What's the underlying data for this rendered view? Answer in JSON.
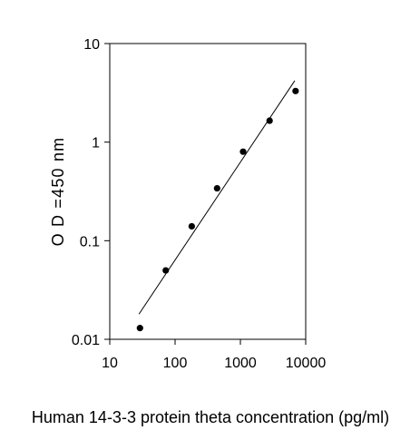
{
  "chart_data": {
    "type": "scatter",
    "title": "",
    "xlabel": "Human 14-3-3 protein theta  concentration (pg/ml)",
    "ylabel": "O D =450 nm",
    "x_scale": "log",
    "y_scale": "log",
    "xlim": [
      10,
      10000
    ],
    "ylim": [
      0.01,
      10
    ],
    "x_ticks": [
      10,
      100,
      1000,
      10000
    ],
    "x_tick_labels": [
      "10",
      "100",
      "1000",
      "10000"
    ],
    "y_ticks": [
      0.01,
      0.1,
      1,
      10
    ],
    "y_tick_labels": [
      "0.01",
      "0.1",
      "1",
      "10"
    ],
    "grid": false,
    "legend": "none",
    "series": [
      {
        "points": [
          {
            "x": 29,
            "y": 0.013
          },
          {
            "x": 72,
            "y": 0.05
          },
          {
            "x": 180,
            "y": 0.14
          },
          {
            "x": 440,
            "y": 0.34
          },
          {
            "x": 1100,
            "y": 0.8
          },
          {
            "x": 2800,
            "y": 1.65
          },
          {
            "x": 7000,
            "y": 3.3
          }
        ]
      }
    ],
    "fit_line": {
      "x": [
        28,
        6800
      ],
      "y": [
        0.018,
        4.2
      ]
    },
    "colors": {
      "marker": "#000000",
      "line": "#000000",
      "axis": "#000000"
    }
  }
}
